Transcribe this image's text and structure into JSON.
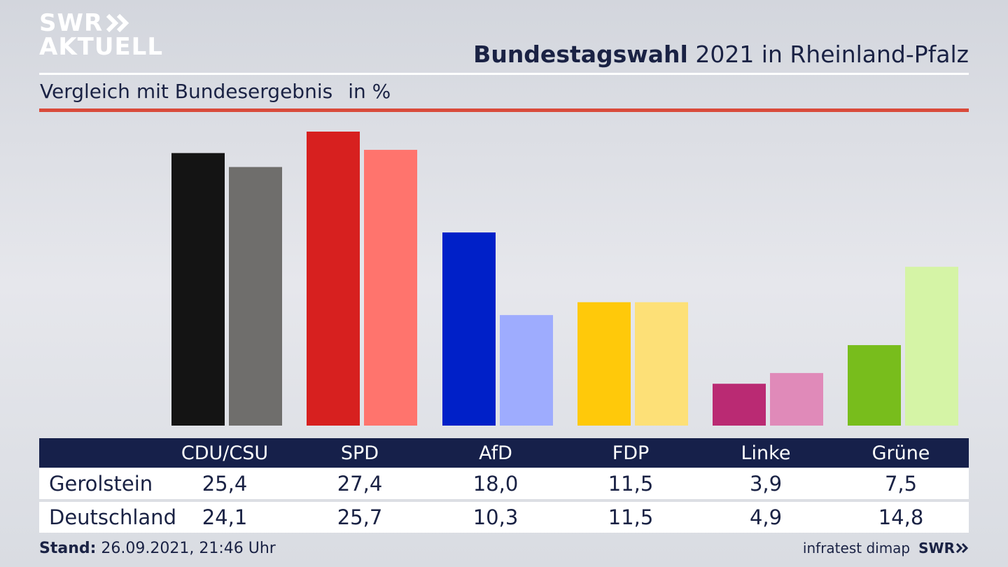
{
  "logo": {
    "line1": "SWR",
    "line2": "AKTUELL"
  },
  "footer_logo": "SWR",
  "header": {
    "title_bold": "Bundestagswahl",
    "title_rest": "2021 in Rheinland-Pfalz",
    "subtitle": "Vergleich mit Bundesergebnis",
    "unit": "in %"
  },
  "colors": {
    "Gerolstein": [
      "#141414",
      "#d7201f",
      "#0020c8",
      "#ffc90a",
      "#ba2a73",
      "#78bd1c"
    ],
    "Deutschland": [
      "#6f6e6c",
      "#ff746d",
      "#9eacfe",
      "#fde077",
      "#e08ab9",
      "#d5f4a6"
    ]
  },
  "chart_data": {
    "type": "bar",
    "categories": [
      "CDU/CSU",
      "SPD",
      "AfD",
      "FDP",
      "Linke",
      "Grüne"
    ],
    "series": [
      {
        "name": "Gerolstein",
        "values": [
          25.4,
          27.4,
          18.0,
          11.5,
          3.9,
          7.5
        ]
      },
      {
        "name": "Deutschland",
        "values": [
          24.1,
          25.7,
          10.3,
          11.5,
          4.9,
          14.8
        ]
      }
    ],
    "title": "Bundestagswahl 2021 in Rheinland-Pfalz",
    "subtitle": "Vergleich mit Bundesergebnis",
    "ylabel": "in %",
    "ylim": [
      0,
      27.4
    ]
  },
  "table": {
    "headers": [
      "CDU/CSU",
      "SPD",
      "AfD",
      "FDP",
      "Linke",
      "Grüne"
    ],
    "rows": [
      {
        "label": "Gerolstein",
        "values": [
          "25,4",
          "27,4",
          "18,0",
          "11,5",
          "3,9",
          "7,5"
        ]
      },
      {
        "label": "Deutschland",
        "values": [
          "24,1",
          "25,7",
          "10,3",
          "11,5",
          "4,9",
          "14,8"
        ]
      }
    ]
  },
  "footer": {
    "stand_label": "Stand:",
    "stand_value": "26.09.2021, 21:46 Uhr",
    "source": "infratest dimap"
  }
}
